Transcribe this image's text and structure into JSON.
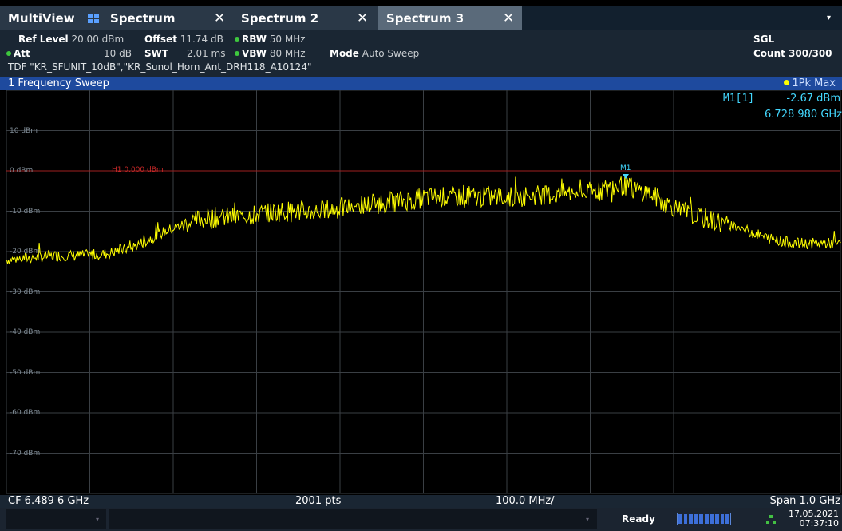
{
  "tabs": {
    "multiview": "MultiView",
    "items": [
      {
        "label": "Spectrum"
      },
      {
        "label": "Spectrum 2"
      },
      {
        "label": "Spectrum 3"
      }
    ],
    "close_glyph": "✕",
    "dropdown_glyph": "▾",
    "active_index": 2
  },
  "settings": {
    "ref_level_label": "Ref Level",
    "ref_level_value": "20.00 dBm",
    "offset_label": "Offset",
    "offset_value": "11.74 dB",
    "rbw_label": "RBW",
    "rbw_value": "50 MHz",
    "att_label": "Att",
    "att_value": "10 dB",
    "swt_label": "SWT",
    "swt_value": "2.01 ms",
    "vbw_label": "VBW",
    "vbw_value": "80 MHz",
    "mode_label": "Mode",
    "mode_value": "Auto Sweep",
    "sgl": "SGL",
    "count": "Count 300/300",
    "tdf": "TDF \"KR_SFUNIT_10dB\",\"KR_Sunol_Horn_Ant_DRH118_A10124\""
  },
  "sweep": {
    "title": "1 Frequency Sweep",
    "trace_legend": "1Pk Max"
  },
  "y_axis": {
    "labels": [
      "10 dBm",
      "0 dBm",
      "-10 dBm",
      "-20 dBm",
      "-30 dBm",
      "-40 dBm",
      "-50 dBm",
      "-60 dBm",
      "-70 dBm"
    ]
  },
  "h1_line": {
    "label": "H1 0.000 dBm",
    "level_dbm": 0.0
  },
  "marker": {
    "name": "M1[1]",
    "short": "M1",
    "level": "-2.67 dBm",
    "frequency": "6.728 980 GHz",
    "freq_ghz": 6.72898,
    "level_dbm": -2.67
  },
  "footer": {
    "cf": "CF 6.489 6 GHz",
    "points": "2001 pts",
    "div": "100.0 MHz/",
    "span": "Span 1.0 GHz"
  },
  "status": {
    "ready": "Ready",
    "date": "17.05.2021",
    "time": "07:37:10"
  },
  "chart_data": {
    "type": "line",
    "x_unit": "GHz",
    "y_unit": "dBm",
    "xlim": [
      5.9896,
      6.9896
    ],
    "ylim": [
      -80,
      20
    ],
    "grid": true,
    "series": [
      {
        "name": "1Pk Max",
        "color": "#ffff00",
        "x": [
          5.99,
          6.02,
          6.05,
          6.08,
          6.11,
          6.14,
          6.16,
          6.18,
          6.2,
          6.22,
          6.24,
          6.26,
          6.28,
          6.3,
          6.32,
          6.34,
          6.36,
          6.38,
          6.4,
          6.42,
          6.44,
          6.46,
          6.48,
          6.5,
          6.52,
          6.54,
          6.56,
          6.58,
          6.6,
          6.62,
          6.64,
          6.66,
          6.68,
          6.7,
          6.72,
          6.73,
          6.74,
          6.76,
          6.78,
          6.8,
          6.82,
          6.84,
          6.86,
          6.88,
          6.9,
          6.92,
          6.94,
          6.96,
          6.99
        ],
        "y": [
          -22,
          -21.5,
          -21,
          -21,
          -20.5,
          -19,
          -17,
          -15,
          -13.5,
          -12,
          -11.5,
          -11.5,
          -11,
          -10.5,
          -10,
          -10,
          -10,
          -9.5,
          -9,
          -8.5,
          -8,
          -7.5,
          -7,
          -6.5,
          -6.5,
          -6.5,
          -6.5,
          -6.5,
          -6.5,
          -6,
          -6,
          -5.5,
          -5.5,
          -5,
          -4,
          -3.5,
          -4.5,
          -5.5,
          -8,
          -10,
          -11.5,
          -12.5,
          -13.5,
          -15,
          -16.5,
          -17.5,
          -18,
          -18,
          -18
        ]
      }
    ]
  }
}
